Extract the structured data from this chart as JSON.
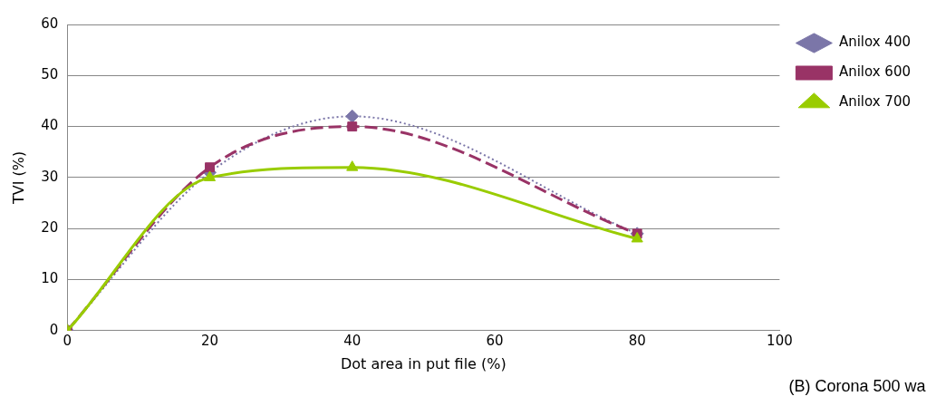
{
  "chart_data": {
    "type": "line",
    "xlabel": "Dot area in put file (%)",
    "ylabel": "TVI (%)",
    "annotations": [
      "(B) Corona 500 wa"
    ],
    "x": [
      0,
      20,
      40,
      80
    ],
    "series": [
      {
        "name": "Anilox 400",
        "color": "#7b76a8",
        "values": [
          0,
          31,
          42,
          19
        ],
        "marker": "diamond",
        "line_style": "dotted"
      },
      {
        "name": "Anilox 600",
        "color": "#993366",
        "values": [
          0,
          32,
          40,
          19
        ],
        "marker": "square",
        "line_style": "dashed"
      },
      {
        "name": "Anilox 700",
        "color": "#99cc00",
        "values": [
          0,
          30,
          32,
          18
        ],
        "marker": "triangle",
        "line_style": "solid"
      }
    ],
    "xlim": [
      0,
      100
    ],
    "xticks": [
      0,
      20,
      40,
      60,
      80,
      100
    ],
    "ylim": [
      0,
      60
    ],
    "yticks": [
      0,
      10,
      20,
      30,
      40,
      50,
      60
    ],
    "grid": "y",
    "legend": "right"
  }
}
